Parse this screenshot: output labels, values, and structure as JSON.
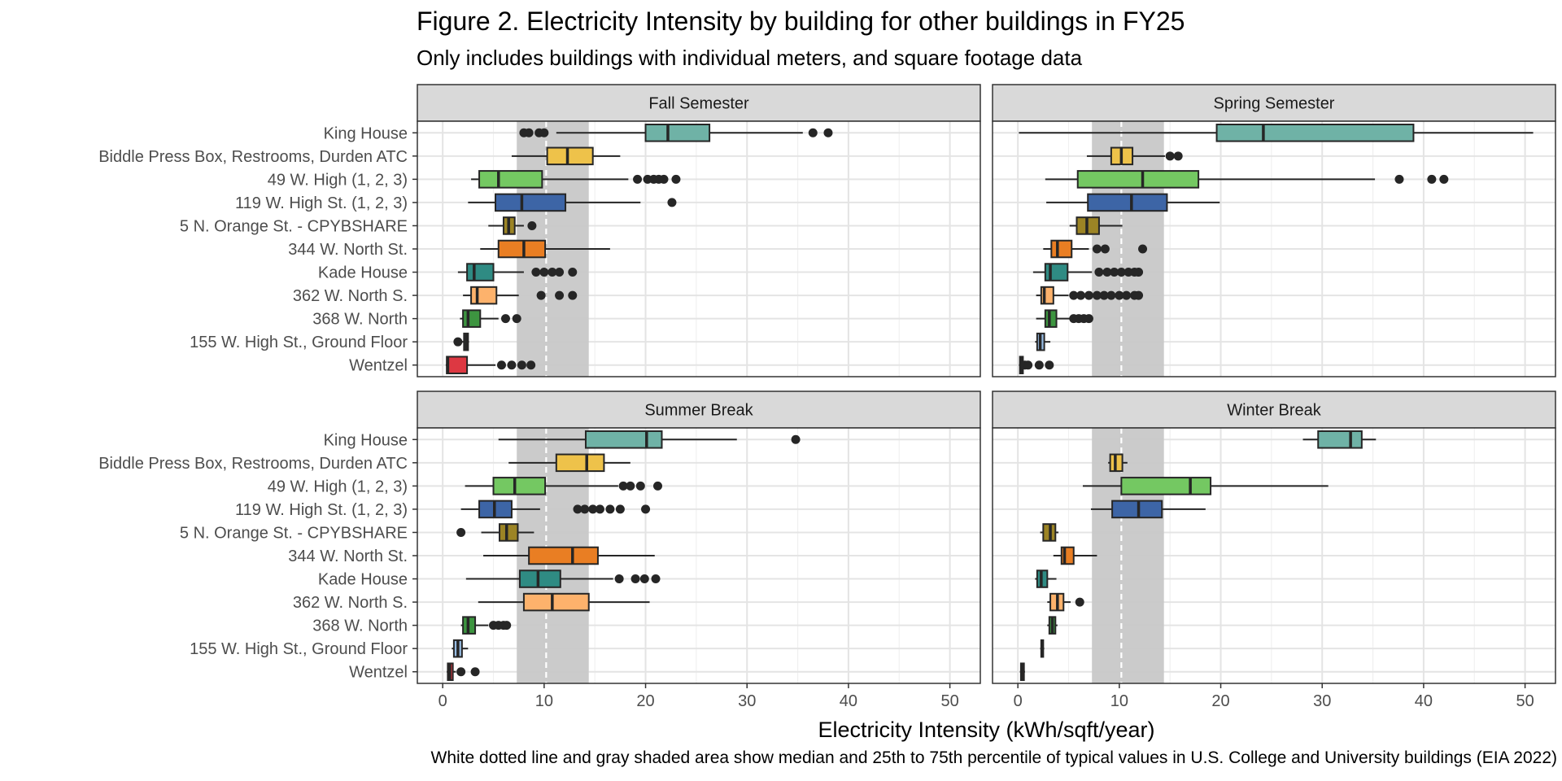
{
  "title": "Figure 2. Electricity Intensity by building for other buildings in FY25",
  "subtitle": "Only includes buildings with individual meters, and square footage data",
  "caption": "White dotted line and gray shaded area show median and 25th to 75th percentile of typical values in U.S. College and University buildings (EIA 2022)",
  "chart_data": {
    "type": "boxplot",
    "xlabel": "Electricity Intensity (kWh/sqft/year)",
    "xlim": [
      -2.5,
      53
    ],
    "xticks": [
      0,
      10,
      20,
      30,
      40,
      50
    ],
    "grid": true,
    "reference": {
      "median": 10.2,
      "q1": 7.3,
      "q3": 14.4,
      "fill": "#c8c8c8",
      "line": "#ffffff"
    },
    "buildings": [
      "King House",
      "Biddle Press Box, Restrooms, Durden ATC",
      "49 W. High (1, 2, 3)",
      "119 W. High St. (1, 2, 3)",
      "5 N. Orange St. - CPYBSHARE",
      "344 W. North St.",
      "Kade House",
      "362 W. North S.",
      "368 W. North",
      "155 W. High St., Ground Floor",
      "Wentzel"
    ],
    "colors": [
      "#6fb2a6",
      "#eec24a",
      "#74c862",
      "#3d65a6",
      "#9c8425",
      "#e97e23",
      "#2f8b83",
      "#fdb26c",
      "#3d9540",
      "#98bde4",
      "#dd3842"
    ],
    "panels": [
      {
        "name": "Fall Semester",
        "boxes": [
          {
            "lo": 11.2,
            "q1": 20.0,
            "med": 22.2,
            "q3": 26.3,
            "hi": 35.5,
            "out": [
              8.0,
              8.5,
              9.5,
              10.0,
              36.5,
              38.0
            ]
          },
          {
            "lo": 6.8,
            "q1": 10.3,
            "med": 12.3,
            "q3": 14.8,
            "hi": 17.5,
            "out": []
          },
          {
            "lo": 2.8,
            "q1": 3.6,
            "med": 5.5,
            "q3": 9.8,
            "hi": 18.3,
            "out": [
              19.2,
              20.2,
              20.8,
              21.3,
              21.8,
              23.0
            ]
          },
          {
            "lo": 2.5,
            "q1": 5.2,
            "med": 7.8,
            "q3": 12.1,
            "hi": 19.5,
            "out": [
              22.6
            ]
          },
          {
            "lo": 4.5,
            "q1": 6.0,
            "med": 6.5,
            "q3": 7.1,
            "hi": 8.0,
            "out": [
              8.8
            ]
          },
          {
            "lo": 3.7,
            "q1": 5.5,
            "med": 8.0,
            "q3": 10.1,
            "hi": 16.5,
            "out": []
          },
          {
            "lo": 1.5,
            "q1": 2.4,
            "med": 3.1,
            "q3": 5.0,
            "hi": 8.0,
            "out": [
              9.2,
              10.0,
              10.8,
              11.5,
              12.8
            ]
          },
          {
            "lo": 2.0,
            "q1": 2.8,
            "med": 3.4,
            "q3": 5.3,
            "hi": 7.5,
            "out": [
              9.7,
              11.5,
              12.8
            ]
          },
          {
            "lo": 1.7,
            "q1": 2.0,
            "med": 2.5,
            "q3": 3.7,
            "hi": 5.5,
            "out": [
              6.2,
              7.3
            ]
          },
          {
            "lo": 1.9,
            "q1": 2.1,
            "med": 2.3,
            "q3": 2.5,
            "hi": 2.6,
            "out": [
              1.5
            ]
          },
          {
            "lo": 0.3,
            "q1": 0.4,
            "med": 0.5,
            "q3": 2.4,
            "hi": 5.2,
            "out": [
              5.8,
              6.8,
              7.8,
              8.7
            ]
          }
        ]
      },
      {
        "name": "Spring Semester",
        "boxes": [
          {
            "lo": 0.1,
            "q1": 19.6,
            "med": 24.2,
            "q3": 39.0,
            "hi": 50.8,
            "out": []
          },
          {
            "lo": 6.8,
            "q1": 9.2,
            "med": 10.2,
            "q3": 11.3,
            "hi": 14.5,
            "out": [
              15.0,
              15.8
            ]
          },
          {
            "lo": 2.7,
            "q1": 5.9,
            "med": 12.3,
            "q3": 17.8,
            "hi": 35.2,
            "out": [
              37.6,
              40.8,
              42.0
            ]
          },
          {
            "lo": 2.8,
            "q1": 6.9,
            "med": 11.2,
            "q3": 14.7,
            "hi": 19.9,
            "out": []
          },
          {
            "lo": 5.1,
            "q1": 5.8,
            "med": 6.8,
            "q3": 8.0,
            "hi": 10.3,
            "out": []
          },
          {
            "lo": 2.5,
            "q1": 3.3,
            "med": 3.9,
            "q3": 5.3,
            "hi": 7.0,
            "out": [
              7.8,
              8.6,
              12.3
            ]
          },
          {
            "lo": 1.5,
            "q1": 2.7,
            "med": 3.2,
            "q3": 4.9,
            "hi": 7.3,
            "out": [
              8.0,
              8.8,
              9.5,
              10.2,
              10.9,
              11.5,
              11.9
            ]
          },
          {
            "lo": 1.8,
            "q1": 2.3,
            "med": 2.6,
            "q3": 3.5,
            "hi": 5.0,
            "out": [
              5.5,
              6.2,
              7.0,
              7.8,
              8.5,
              9.2,
              10.0,
              10.7,
              11.5,
              11.9
            ]
          },
          {
            "lo": 1.8,
            "q1": 2.7,
            "med": 3.1,
            "q3": 3.8,
            "hi": 5.3,
            "out": [
              5.5,
              6.0,
              6.5,
              7.0
            ]
          },
          {
            "lo": 1.7,
            "q1": 1.9,
            "med": 2.2,
            "q3": 2.6,
            "hi": 3.2,
            "out": []
          },
          {
            "lo": 0.1,
            "q1": 0.2,
            "med": 0.3,
            "q3": 0.5,
            "hi": 0.6,
            "out": [
              0.7,
              1.0,
              2.1,
              3.1
            ]
          }
        ]
      },
      {
        "name": "Summer Break",
        "boxes": [
          {
            "lo": 5.5,
            "q1": 14.1,
            "med": 20.1,
            "q3": 21.6,
            "hi": 29.0,
            "out": [
              34.8
            ]
          },
          {
            "lo": 6.5,
            "q1": 11.2,
            "med": 14.2,
            "q3": 15.9,
            "hi": 18.5,
            "out": []
          },
          {
            "lo": 2.2,
            "q1": 5.0,
            "med": 7.1,
            "q3": 10.1,
            "hi": 17.3,
            "out": [
              17.8,
              18.5,
              19.5,
              21.2
            ]
          },
          {
            "lo": 1.8,
            "q1": 3.6,
            "med": 5.1,
            "q3": 6.8,
            "hi": 9.6,
            "out": [
              13.3,
              14.0,
              14.8,
              15.5,
              16.5,
              17.5,
              20.0
            ]
          },
          {
            "lo": 3.8,
            "q1": 5.6,
            "med": 6.3,
            "q3": 7.4,
            "hi": 9.0,
            "out": [
              1.8
            ]
          },
          {
            "lo": 4.0,
            "q1": 8.5,
            "med": 12.8,
            "q3": 15.3,
            "hi": 20.9,
            "out": []
          },
          {
            "lo": 2.3,
            "q1": 7.6,
            "med": 9.4,
            "q3": 11.6,
            "hi": 16.8,
            "out": [
              17.4,
              19.0,
              19.9,
              21.0
            ]
          },
          {
            "lo": 3.5,
            "q1": 8.0,
            "med": 10.8,
            "q3": 14.4,
            "hi": 20.4,
            "out": []
          },
          {
            "lo": 1.8,
            "q1": 2.0,
            "med": 2.5,
            "q3": 3.2,
            "hi": 4.5,
            "out": [
              5.0,
              5.5,
              6.0,
              6.3
            ]
          },
          {
            "lo": 0.9,
            "q1": 1.1,
            "med": 1.5,
            "q3": 1.9,
            "hi": 2.5,
            "out": []
          },
          {
            "lo": 0.4,
            "q1": 0.5,
            "med": 0.7,
            "q3": 1.0,
            "hi": 1.3,
            "out": [
              1.8,
              3.2
            ]
          }
        ]
      },
      {
        "name": "Winter Break",
        "boxes": [
          {
            "lo": 28.1,
            "q1": 29.6,
            "med": 32.8,
            "q3": 33.9,
            "hi": 35.3,
            "out": []
          },
          {
            "lo": 8.9,
            "q1": 9.1,
            "med": 9.6,
            "q3": 10.3,
            "hi": 10.8,
            "out": []
          },
          {
            "lo": 6.4,
            "q1": 10.2,
            "med": 17.0,
            "q3": 19.0,
            "hi": 30.6,
            "out": []
          },
          {
            "lo": 7.2,
            "q1": 9.3,
            "med": 11.9,
            "q3": 14.2,
            "hi": 18.5,
            "out": []
          },
          {
            "lo": 2.2,
            "q1": 2.5,
            "med": 3.2,
            "q3": 3.7,
            "hi": 4.0,
            "out": []
          },
          {
            "lo": 3.5,
            "q1": 4.3,
            "med": 4.6,
            "q3": 5.5,
            "hi": 7.8,
            "out": []
          },
          {
            "lo": 1.7,
            "q1": 1.9,
            "med": 2.3,
            "q3": 2.9,
            "hi": 3.8,
            "out": []
          },
          {
            "lo": 2.9,
            "q1": 3.2,
            "med": 3.9,
            "q3": 4.5,
            "hi": 5.2,
            "out": [
              6.1
            ]
          },
          {
            "lo": 2.9,
            "q1": 3.1,
            "med": 3.4,
            "q3": 3.7,
            "hi": 3.9,
            "out": []
          },
          {
            "lo": 2.2,
            "q1": 2.3,
            "med": 2.4,
            "q3": 2.5,
            "hi": 2.6,
            "out": []
          },
          {
            "lo": 0.2,
            "q1": 0.3,
            "med": 0.4,
            "q3": 0.6,
            "hi": 0.7,
            "out": []
          }
        ]
      }
    ]
  }
}
